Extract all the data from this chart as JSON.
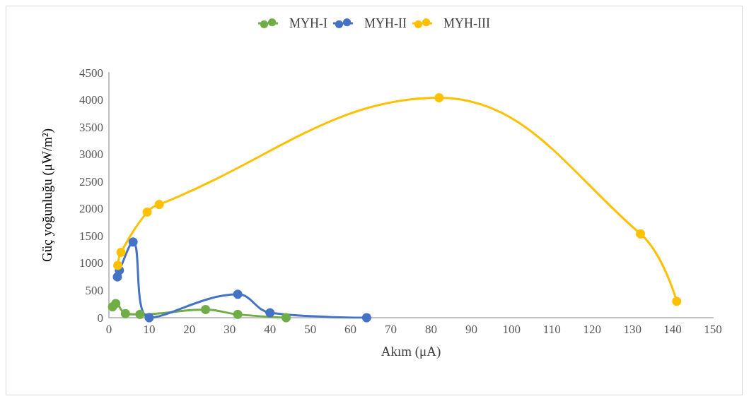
{
  "chart_data": {
    "type": "line",
    "xlabel": "Akım (μA)",
    "ylabel": "Güç yoğunluğu (μW/m²)",
    "xlim": [
      0,
      150
    ],
    "xticks": [
      0,
      10,
      20,
      30,
      40,
      50,
      60,
      70,
      80,
      90,
      100,
      110,
      120,
      130,
      140,
      150
    ],
    "ylim": [
      0,
      4500
    ],
    "yticks": [
      0,
      500,
      1000,
      1500,
      2000,
      2500,
      3000,
      3500,
      4000,
      4500
    ],
    "grid": false,
    "legend": "top",
    "marker": "circle",
    "line_style": "solid",
    "series": [
      {
        "name": "MYH-I",
        "color": "#70ad47",
        "x": [
          0.9,
          1.7,
          4.1,
          7.7,
          24,
          32,
          44
        ],
        "values": [
          200,
          260,
          75,
          60,
          150,
          60,
          0
        ]
      },
      {
        "name": "MYH-II",
        "color": "#4472c4",
        "x": [
          2.1,
          2.6,
          6,
          10,
          32,
          40,
          64
        ],
        "values": [
          750,
          870,
          1390,
          0,
          430,
          90,
          0
        ]
      },
      {
        "name": "MYH-III",
        "color": "#ffc000",
        "x": [
          2.2,
          3,
          9.5,
          12.5,
          82,
          132,
          141
        ],
        "values": [
          960,
          1200,
          1940,
          2080,
          4040,
          1540,
          300
        ]
      }
    ]
  }
}
